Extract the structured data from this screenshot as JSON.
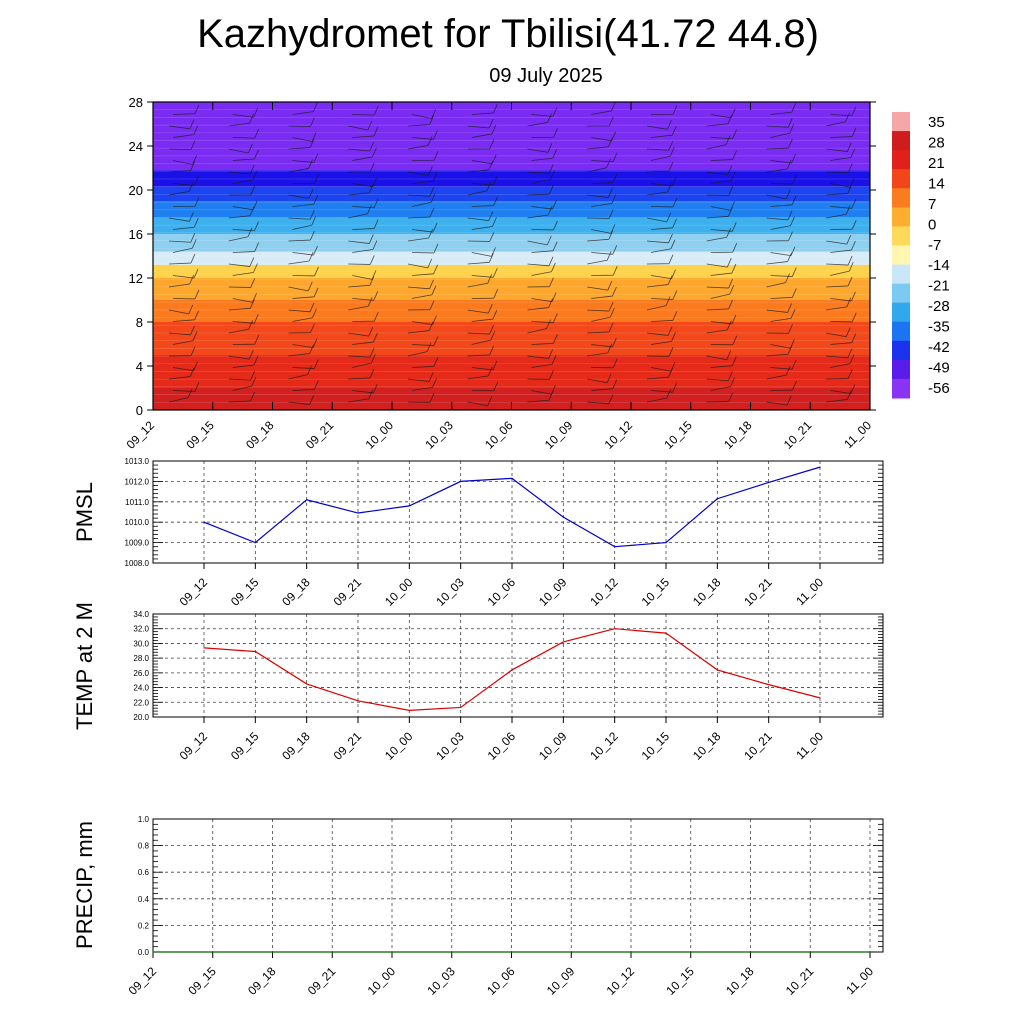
{
  "title": "Kazhydromet for Tbilisi(41.72 44.8)",
  "subtitle": "09 July 2025",
  "chart_data": [
    {
      "id": "cross-section",
      "type": "heatmap",
      "ylabel": "",
      "yticks": [
        0,
        4,
        8,
        12,
        16,
        20,
        24,
        28
      ],
      "ylim": [
        0,
        28
      ],
      "xticks": [
        "09_12",
        "09_15",
        "09_18",
        "09_21",
        "10_00",
        "10_03",
        "10_06",
        "10_09",
        "10_12",
        "10_15",
        "10_18",
        "10_21",
        "11_00"
      ],
      "colorbar": [
        "35",
        "28",
        "21",
        "14",
        "7",
        "0",
        "-7",
        "-14",
        "-21",
        "-28",
        "-35",
        "-42",
        "-49",
        "-56"
      ],
      "level_bands": [
        {
          "from": 0,
          "to": 2,
          "color": "#d22020"
        },
        {
          "from": 2,
          "to": 5,
          "color": "#e52a1a"
        },
        {
          "from": 5,
          "to": 8,
          "color": "#f2481a"
        },
        {
          "from": 8,
          "to": 10,
          "color": "#fb7a1e"
        },
        {
          "from": 10,
          "to": 12,
          "color": "#fda72c"
        },
        {
          "from": 12,
          "to": 13.2,
          "color": "#fed24c"
        },
        {
          "from": 13.2,
          "to": 14.4,
          "color": "#d7ecf7"
        },
        {
          "from": 14.4,
          "to": 16,
          "color": "#8fd0f0"
        },
        {
          "from": 16,
          "to": 17.5,
          "color": "#3fb0ee"
        },
        {
          "from": 17.5,
          "to": 19,
          "color": "#1f7ff0"
        },
        {
          "from": 19,
          "to": 20.3,
          "color": "#1c44f0"
        },
        {
          "from": 20.3,
          "to": 21.8,
          "color": "#1a10e8"
        },
        {
          "from": 21.8,
          "to": 28,
          "color": "#7a2cf2"
        }
      ]
    },
    {
      "id": "pmsl",
      "type": "line",
      "ylabel": "PMSL",
      "ylim": [
        1008.0,
        1013.0
      ],
      "yticks": [
        "1008.0",
        "1009.0",
        "1010.0",
        "1011.0",
        "1012.0",
        "1013.0"
      ],
      "x": [
        "09_12",
        "09_15",
        "09_18",
        "09_21",
        "10_00",
        "10_03",
        "10_06",
        "10_09",
        "10_12",
        "10_15",
        "10_18",
        "10_21",
        "11_00"
      ],
      "values": [
        1010.0,
        1009.0,
        1011.1,
        1010.45,
        1010.8,
        1012.0,
        1012.15,
        1010.25,
        1008.8,
        1009.0,
        1011.15,
        1011.95,
        1012.7
      ],
      "color": "#0000cc"
    },
    {
      "id": "temp2m",
      "type": "line",
      "ylabel": "TEMP at 2 M",
      "ylim": [
        20.0,
        34.0
      ],
      "yticks": [
        "20.0",
        "22.0",
        "24.0",
        "26.0",
        "28.0",
        "30.0",
        "32.0",
        "34.0"
      ],
      "x": [
        "09_12",
        "09_15",
        "09_18",
        "09_21",
        "10_00",
        "10_03",
        "10_06",
        "10_09",
        "10_12",
        "10_15",
        "10_18",
        "10_21",
        "11_00"
      ],
      "values": [
        29.4,
        28.9,
        24.5,
        22.2,
        20.9,
        21.3,
        26.4,
        30.2,
        32.0,
        31.4,
        26.4,
        24.4,
        22.6
      ],
      "color": "#dd0000"
    },
    {
      "id": "precip",
      "type": "line",
      "ylabel": "PRECIP, mm",
      "ylim": [
        0.0,
        1.0
      ],
      "yticks": [
        "0.0",
        "0.2",
        "0.4",
        "0.6",
        "0.8",
        "1.0"
      ],
      "x": [
        "09_12",
        "09_15",
        "09_18",
        "09_21",
        "10_00",
        "10_03",
        "10_06",
        "10_09",
        "10_12",
        "10_15",
        "10_18",
        "10_21",
        "11_00"
      ],
      "values": [
        0,
        0,
        0,
        0,
        0,
        0,
        0,
        0,
        0,
        0,
        0,
        0,
        0
      ],
      "color": "#006400"
    }
  ]
}
